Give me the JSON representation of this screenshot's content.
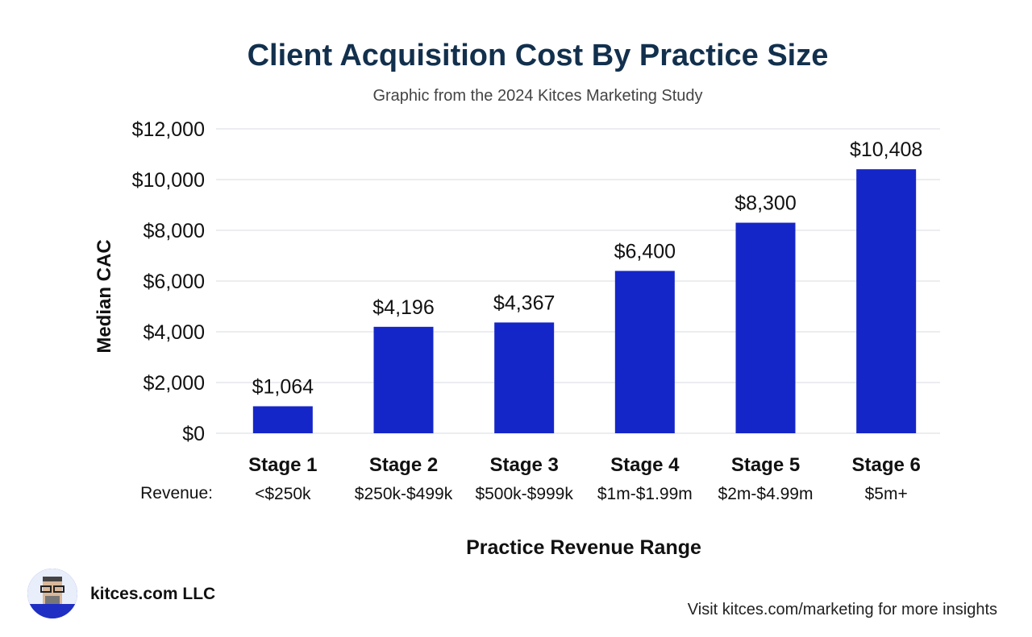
{
  "chart_data": {
    "type": "bar",
    "title": "Client Acquisition Cost By Practice Size",
    "subtitle": "Graphic from the 2024 Kitces Marketing Study",
    "xlabel": "Practice Revenue Range",
    "ylabel": "Median CAC",
    "ylim": [
      0,
      12000
    ],
    "yticks": [
      0,
      2000,
      4000,
      6000,
      8000,
      10000,
      12000
    ],
    "ytick_labels": [
      "$0",
      "$2,000",
      "$4,000",
      "$6,000",
      "$8,000",
      "$10,000",
      "$12,000"
    ],
    "categories": [
      "Stage 1",
      "Stage 2",
      "Stage 3",
      "Stage 4",
      "Stage 5",
      "Stage 6"
    ],
    "revenue_label": "Revenue:",
    "revenue_ranges": [
      "<$250k",
      "$250k-$499k",
      "$500k-$999k",
      "$1m-$1.99m",
      "$2m-$4.99m",
      "$5m+"
    ],
    "values": [
      1064,
      4196,
      4367,
      6400,
      8300,
      10408
    ],
    "value_labels": [
      "$1,064",
      "$4,196",
      "$4,367",
      "$6,400",
      "$8,300",
      "$10,408"
    ],
    "bar_color": "#1526c8",
    "grid": true
  },
  "branding": {
    "company": "kitces.com LLC",
    "footer": "Visit kitces.com/marketing for more insights"
  }
}
